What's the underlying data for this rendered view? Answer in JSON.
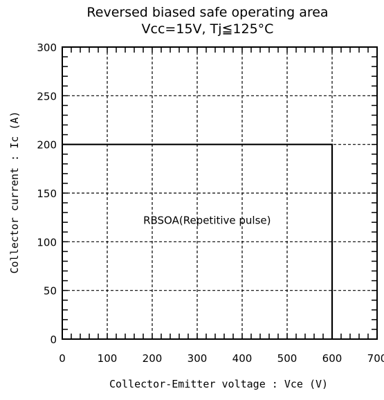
{
  "chart_data": {
    "type": "line",
    "title": "Reversed biased safe operating area",
    "subtitle": "Vcc=15V, Tj≦125°C",
    "xlabel": "Collector-Emitter voltage : Vce (V)",
    "ylabel": "Collector current : Ic (A)",
    "xlim": [
      0,
      700
    ],
    "ylim": [
      0,
      300
    ],
    "x_ticks": [
      0,
      100,
      200,
      300,
      400,
      500,
      600,
      700
    ],
    "y_ticks": [
      0,
      50,
      100,
      150,
      200,
      250,
      300
    ],
    "x_minor_step": 20,
    "y_minor_step": 10,
    "grid": true,
    "series": [
      {
        "name": "RBSOA(Repetitive pulse)",
        "x": [
          0,
          600,
          600
        ],
        "y": [
          200,
          200,
          0
        ]
      }
    ],
    "annotations": [
      {
        "text": "RBSOA(Repetitive pulse)",
        "x": 322,
        "y": 122
      }
    ]
  }
}
